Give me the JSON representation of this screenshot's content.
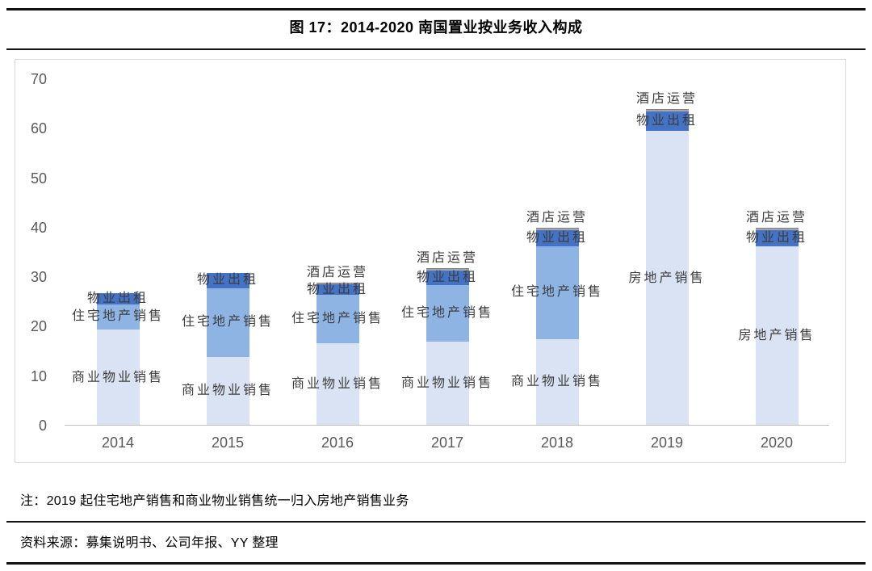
{
  "title": "图 17：2014-2020 南国置业按业务收入构成",
  "note": "注：2019 起住宅地产销售和商业物业销售统一归入房地产销售业务",
  "source": "资料来源：募集说明书、公司年报、YY 整理",
  "chart_data": {
    "type": "bar",
    "stacked": true,
    "title": "图 17：2014-2020 南国置业按业务收入构成",
    "ylim": [
      0,
      70
    ],
    "yticks": [
      0,
      10,
      20,
      30,
      40,
      50,
      60,
      70
    ],
    "grid": false,
    "legend": "none (labels drawn on bars)",
    "categories": [
      "2014",
      "2015",
      "2016",
      "2017",
      "2018",
      "2019",
      "2020"
    ],
    "colors": {
      "light": "#dae3f3",
      "medium": "#8eb4e3",
      "dark": "#4472c4",
      "gray": "#a6a6a6",
      "grayEdge": "#7f7f7f"
    },
    "bars": [
      {
        "category": "2014",
        "segments": [
          {
            "label": "商业物业销售",
            "value": 19.4,
            "colorKey": "light"
          },
          {
            "label": "住宅地产销售",
            "value": 5.1,
            "colorKey": "medium"
          },
          {
            "label": "物业出租",
            "value": 2.3,
            "colorKey": "dark"
          }
        ]
      },
      {
        "category": "2015",
        "segments": [
          {
            "label": "商业物业销售",
            "value": 13.9,
            "colorKey": "light"
          },
          {
            "label": "住宅地产销售",
            "value": 13.9,
            "colorKey": "medium"
          },
          {
            "label": "物业出租",
            "value": 3.0,
            "colorKey": "dark"
          }
        ]
      },
      {
        "category": "2016",
        "segments": [
          {
            "label": "商业物业销售",
            "value": 16.6,
            "colorKey": "light"
          },
          {
            "label": "住宅地产销售",
            "value": 9.8,
            "colorKey": "medium"
          },
          {
            "label": "物业出租",
            "value": 2.1,
            "colorKey": "dark"
          },
          {
            "label": "酒店运营",
            "value": 0.3,
            "colorKey": "gray",
            "labelAbove": true
          }
        ]
      },
      {
        "category": "2017",
        "segments": [
          {
            "label": "商业物业销售",
            "value": 16.9,
            "colorKey": "light"
          },
          {
            "label": "住宅地产销售",
            "value": 11.5,
            "colorKey": "medium"
          },
          {
            "label": "物业出租",
            "value": 2.9,
            "colorKey": "dark"
          },
          {
            "label": "酒店运营",
            "value": 0.5,
            "colorKey": "gray",
            "labelAbove": true
          }
        ]
      },
      {
        "category": "2018",
        "segments": [
          {
            "label": "商业物业销售",
            "value": 17.5,
            "colorKey": "light"
          },
          {
            "label": "住宅地产销售",
            "value": 18.7,
            "colorKey": "medium"
          },
          {
            "label": "物业出租",
            "value": 3.3,
            "colorKey": "dark"
          },
          {
            "label": "酒店运营",
            "value": 0.4,
            "colorKey": "gray",
            "labelAbove": true
          }
        ]
      },
      {
        "category": "2019",
        "segments": [
          {
            "label": "房地产销售",
            "value": 59.5,
            "colorKey": "light"
          },
          {
            "label": "物业出租",
            "value": 4.0,
            "colorKey": "dark"
          },
          {
            "label": "酒店运营",
            "value": 0.5,
            "colorKey": "gray",
            "labelAbove": true
          }
        ]
      },
      {
        "category": "2020",
        "segments": [
          {
            "label": "房地产销售",
            "value": 36.2,
            "colorKey": "light"
          },
          {
            "label": "物业出租",
            "value": 3.3,
            "colorKey": "dark"
          },
          {
            "label": "酒店运营",
            "value": 0.5,
            "colorKey": "gray",
            "labelAbove": true
          }
        ]
      }
    ]
  }
}
